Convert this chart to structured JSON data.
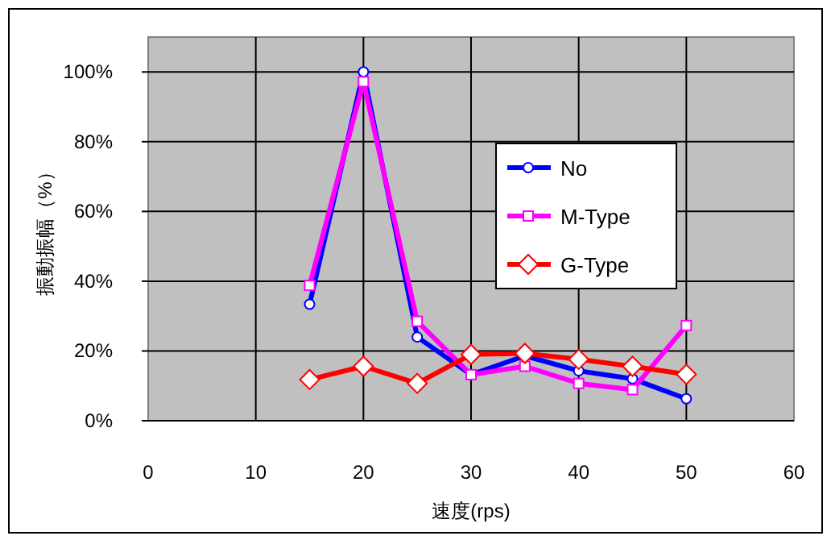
{
  "chart_data": {
    "type": "line",
    "xlabel": "速度(rps)",
    "ylabel": "振動振幅（%）",
    "x": [
      15,
      20,
      25,
      30,
      35,
      40,
      45,
      50
    ],
    "series": [
      {
        "name": "No",
        "color": "#0000ff",
        "marker": "circle",
        "values": [
          33.4,
          100,
          24,
          13.2,
          18.6,
          14.3,
          12,
          6.3
        ]
      },
      {
        "name": "M-Type",
        "color": "#ff00ff",
        "marker": "square",
        "values": [
          38.8,
          97.2,
          28.5,
          13.2,
          15.6,
          10.7,
          8.9,
          27.3
        ]
      },
      {
        "name": "G-Type",
        "color": "#ff0000",
        "marker": "diamond",
        "values": [
          11.8,
          15.6,
          10.7,
          19,
          19.3,
          17.6,
          15.6,
          13.3
        ]
      }
    ],
    "xlim": [
      0,
      60
    ],
    "xticks": [
      0,
      10,
      20,
      30,
      40,
      50,
      60
    ],
    "ylim": [
      0,
      110
    ],
    "yticks": [
      {
        "value": 0,
        "label": "0%"
      },
      {
        "value": 20,
        "label": "20%"
      },
      {
        "value": 40,
        "label": "40%"
      },
      {
        "value": 60,
        "label": "60%"
      },
      {
        "value": 80,
        "label": "80%"
      },
      {
        "value": 100,
        "label": "100%"
      }
    ],
    "grid": true,
    "legend": "right"
  }
}
